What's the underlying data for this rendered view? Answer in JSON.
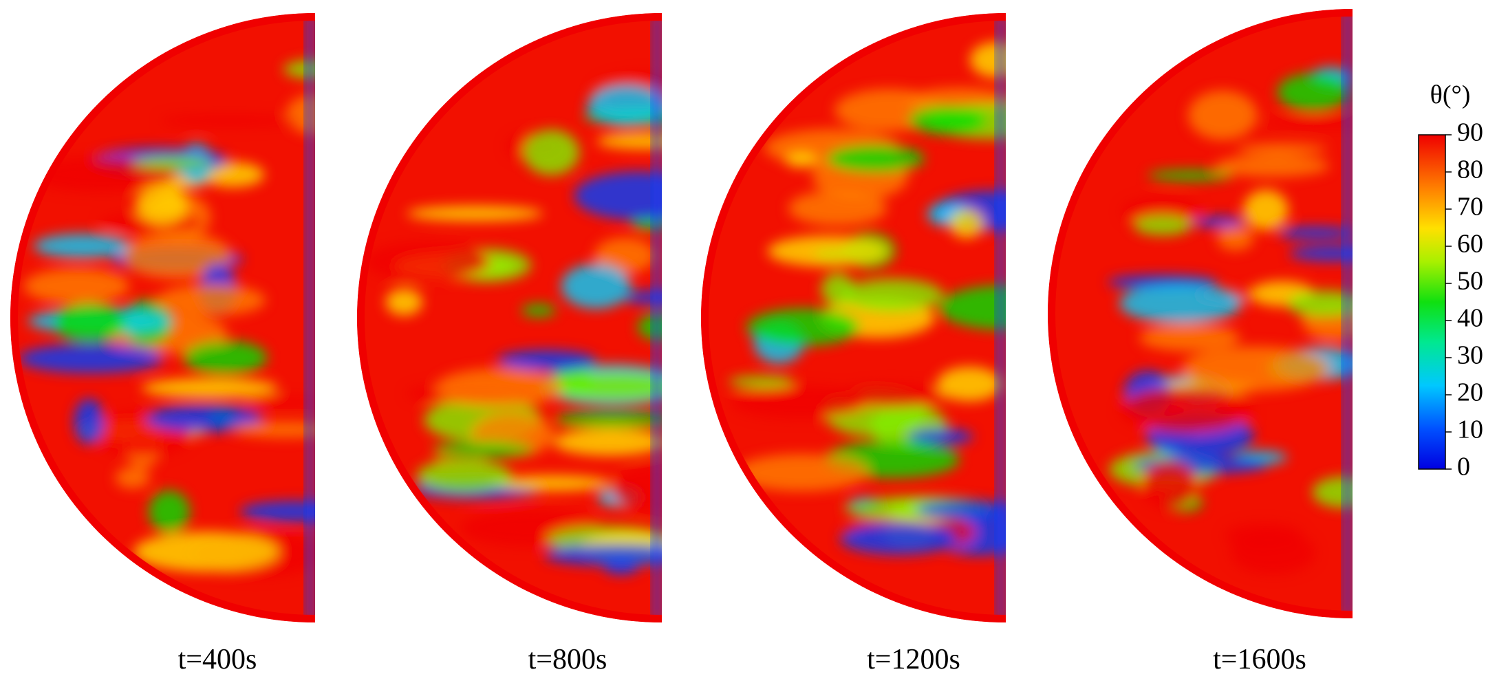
{
  "figure": {
    "panels": [
      {
        "label": "t=400s"
      },
      {
        "label": "t=800s"
      },
      {
        "label": "t=1200s"
      },
      {
        "label": "t=1600s"
      }
    ],
    "colorbar": {
      "title": "θ(°)",
      "lim": [
        0,
        90
      ],
      "ticks": [
        0,
        10,
        20,
        30,
        40,
        50,
        60,
        70,
        80,
        90
      ]
    }
  }
}
